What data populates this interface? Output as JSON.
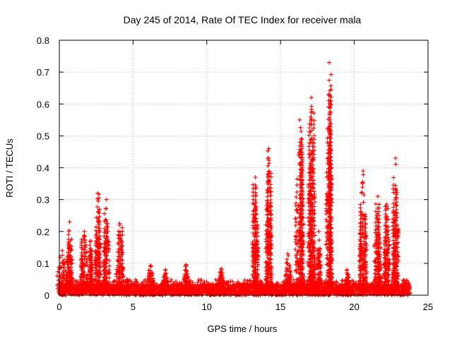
{
  "chart_data": {
    "type": "scatter",
    "title": "Day 245 of 2014, Rate Of TEC Index for receiver mala",
    "xlabel": "GPS time / hours",
    "ylabel": "ROTI / TECUs",
    "xlim": [
      0,
      25
    ],
    "ylim": [
      0,
      0.8
    ],
    "x_ticks": [
      "0",
      "5",
      "10",
      "15",
      "20",
      "25"
    ],
    "y_ticks": [
      "0",
      "0.1",
      "0.2",
      "0.3",
      "0.4",
      "0.5",
      "0.6",
      "0.7",
      "0.8"
    ],
    "grid": true,
    "marker": "+",
    "marker_color": "#ff0000",
    "baseline": {
      "x_start": 0.0,
      "x_end": 23.8,
      "low": 0.0,
      "high": 0.035
    },
    "bursts": [
      {
        "x": 0.2,
        "width": 0.7,
        "peak": 0.14
      },
      {
        "x": 0.7,
        "width": 0.35,
        "peak": 0.23
      },
      {
        "x": 1.7,
        "width": 0.5,
        "peak": 0.2
      },
      {
        "x": 2.15,
        "width": 0.2,
        "peak": 0.17
      },
      {
        "x": 2.6,
        "width": 0.4,
        "peak": 0.32
      },
      {
        "x": 3.2,
        "width": 0.4,
        "peak": 0.3
      },
      {
        "x": 4.1,
        "width": 0.5,
        "peak": 0.22
      },
      {
        "x": 4.6,
        "width": 0.3,
        "peak": 0.05
      },
      {
        "x": 6.2,
        "width": 0.4,
        "peak": 0.09
      },
      {
        "x": 7.2,
        "width": 0.3,
        "peak": 0.08
      },
      {
        "x": 8.6,
        "width": 0.3,
        "peak": 0.09
      },
      {
        "x": 11.0,
        "width": 0.4,
        "peak": 0.08
      },
      {
        "x": 13.3,
        "width": 0.4,
        "peak": 0.37
      },
      {
        "x": 14.2,
        "width": 0.4,
        "peak": 0.46
      },
      {
        "x": 15.5,
        "width": 0.4,
        "peak": 0.13
      },
      {
        "x": 16.3,
        "width": 0.6,
        "peak": 0.55
      },
      {
        "x": 17.1,
        "width": 0.5,
        "peak": 0.62
      },
      {
        "x": 17.6,
        "width": 0.3,
        "peak": 0.2
      },
      {
        "x": 18.3,
        "width": 0.4,
        "peak": 0.73
      },
      {
        "x": 19.5,
        "width": 0.3,
        "peak": 0.08
      },
      {
        "x": 20.6,
        "width": 0.5,
        "peak": 0.39
      },
      {
        "x": 21.6,
        "width": 0.5,
        "peak": 0.31
      },
      {
        "x": 22.2,
        "width": 0.4,
        "peak": 0.28
      },
      {
        "x": 22.8,
        "width": 0.4,
        "peak": 0.43
      },
      {
        "x": 23.4,
        "width": 0.3,
        "peak": 0.04
      }
    ]
  }
}
